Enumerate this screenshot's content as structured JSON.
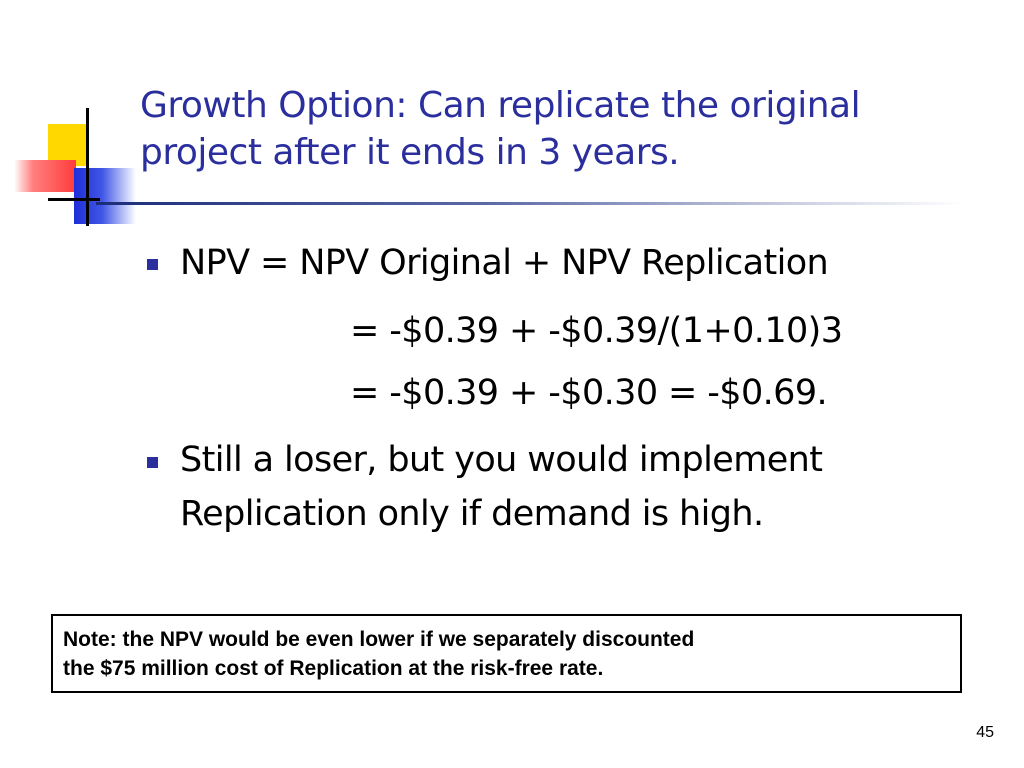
{
  "slide": {
    "title_line1": "Growth Option: Can replicate the original",
    "title_line2": "project after it ends in 3 years.",
    "bullets": [
      {
        "line1": "NPV = NPV Original + NPV Replication",
        "line2": "= -$0.39 + -$0.39/(1+0.10)3",
        "line3": "= -$0.39 + -$0.30 = -$0.69."
      },
      {
        "line1": "Still a loser, but you would implement",
        "line2": "Replication only if demand is high."
      }
    ],
    "note_line1": "Note: the NPV would be even lower if we separately discounted",
    "note_line2": "the $75 million cost of Replication at the risk-free rate.",
    "page_number": "45"
  },
  "colors": {
    "title": "#2b2f9e",
    "bullet": "#2b2f9e",
    "text": "#000000"
  },
  "icons": {
    "logo": "slide-logo-icon",
    "bullet": "square-bullet-icon"
  }
}
